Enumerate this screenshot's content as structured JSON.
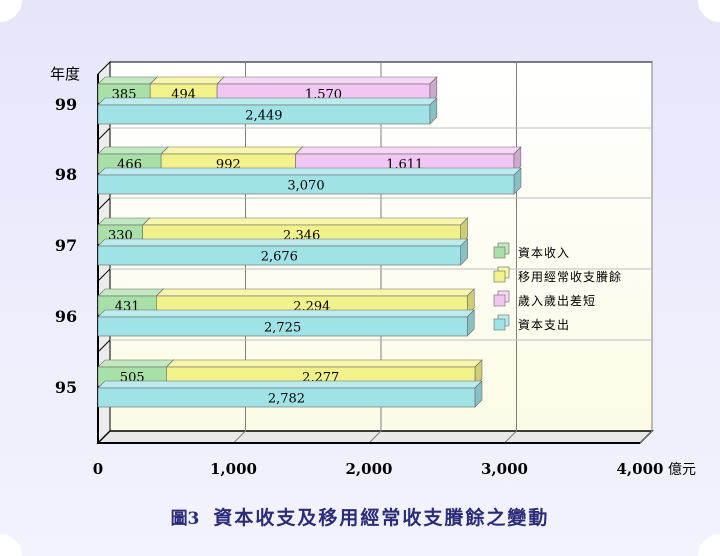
{
  "chart_data": {
    "type": "bar",
    "orientation": "horizontal",
    "stacked": true,
    "title": "資本收支及移用經常收支賸餘之變動",
    "figure_label": "圖3",
    "ylabel": "年度",
    "xunit": "億元",
    "categories": [
      "99",
      "98",
      "97",
      "96",
      "95"
    ],
    "xlim": [
      0,
      4000
    ],
    "xticks": [
      "0",
      "1,000",
      "2,000",
      "3,000",
      "4,000"
    ],
    "grid": true,
    "legend_position": "right",
    "series": [
      {
        "name": "資本收入",
        "color": "#a8e0a8",
        "stack": "revenue",
        "values": [
          385,
          466,
          330,
          431,
          505
        ],
        "labels": [
          "385",
          "466",
          "330",
          "431",
          "505"
        ]
      },
      {
        "name": "移用經常收支賸餘",
        "color": "#f2f28a",
        "stack": "revenue",
        "values": [
          494,
          992,
          2346,
          2294,
          2277
        ],
        "labels": [
          "494",
          "992",
          "2,346",
          "2,294",
          "2,277"
        ]
      },
      {
        "name": "歲入歲出差短",
        "color": "#f2c6f2",
        "stack": "revenue",
        "values": [
          1570,
          1611,
          0,
          0,
          0
        ],
        "labels": [
          "1,570",
          "1,611",
          "",
          "",
          ""
        ]
      },
      {
        "name": "資本支出",
        "color": "#9fe3e6",
        "stack": "expenditure",
        "values": [
          2449,
          3070,
          2676,
          2725,
          2782
        ],
        "labels": [
          "2,449",
          "3,070",
          "2,676",
          "2,725",
          "2,782"
        ]
      }
    ]
  }
}
